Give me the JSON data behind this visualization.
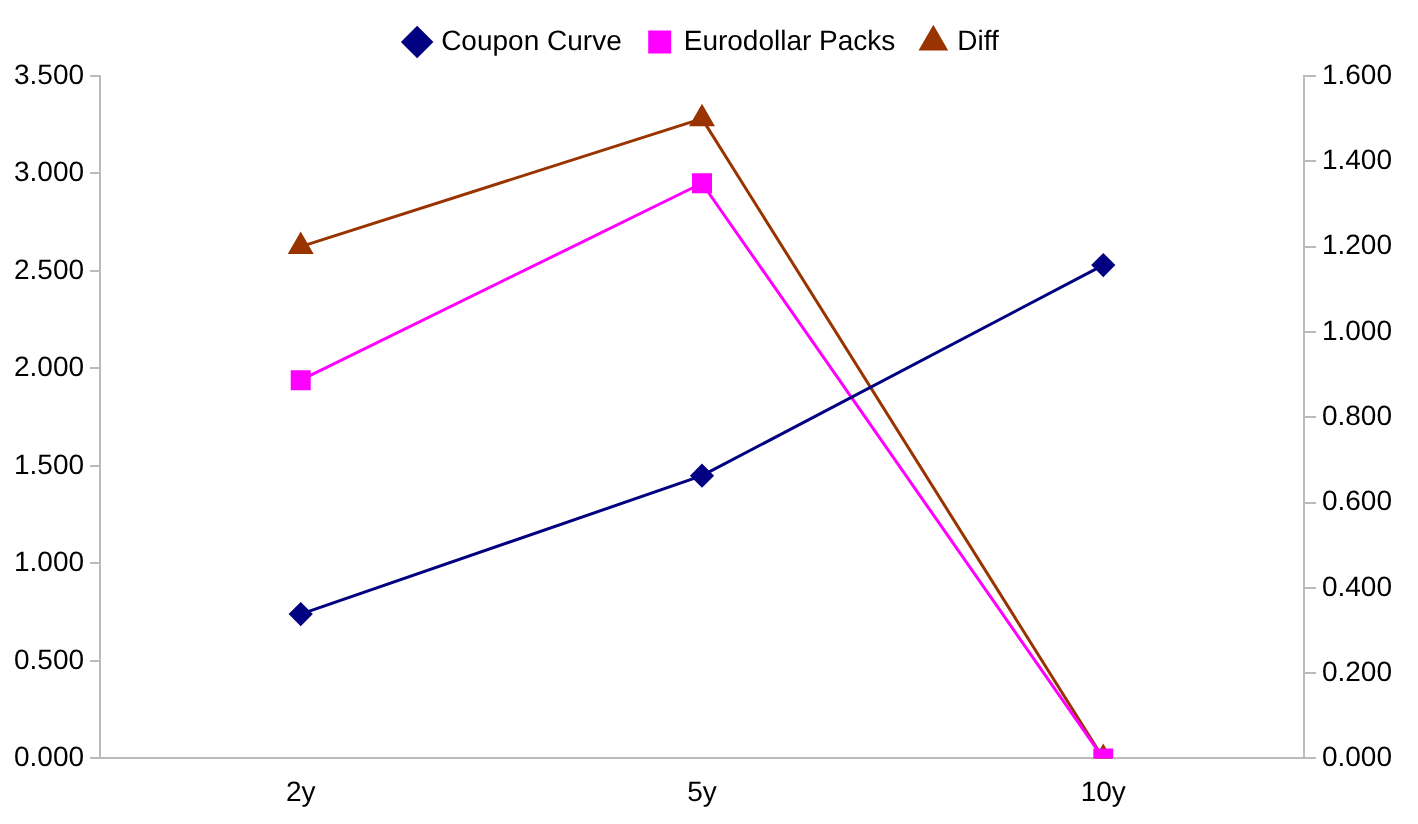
{
  "chart_data": {
    "type": "line",
    "categories": [
      "2y",
      "5y",
      "10y"
    ],
    "series": [
      {
        "name": "Coupon Curve",
        "color": "#000080",
        "values": [
          0.74,
          1.45,
          2.53
        ],
        "marker": "diamond"
      },
      {
        "name": "Eurodollar Packs",
        "color": "#ff00ff",
        "values": [
          1.94,
          2.95,
          0
        ],
        "marker": "square"
      },
      {
        "name": "Diff",
        "color": "#993300",
        "values": [
          1.2,
          1.5,
          0
        ],
        "marker": "triangle",
        "axis": "y2"
      }
    ],
    "ylim": [
      0,
      3.5
    ],
    "yticks": [
      {
        "value": 0,
        "label": "0.000"
      },
      {
        "value": 0.5,
        "label": "0.500"
      },
      {
        "value": 1,
        "label": "1.000"
      },
      {
        "value": 1.5,
        "label": "1.500"
      },
      {
        "value": 2,
        "label": "2.000"
      },
      {
        "value": 2.5,
        "label": "2.500"
      },
      {
        "value": 3,
        "label": "3.000"
      },
      {
        "value": 3.5,
        "label": "3.500"
      }
    ],
    "y2lim": [
      0,
      1.6
    ],
    "y2ticks": [
      {
        "value": 0,
        "label": "0.000"
      },
      {
        "value": 0.2,
        "label": "0.200"
      },
      {
        "value": 0.4,
        "label": "0.400"
      },
      {
        "value": 0.6,
        "label": "0.600"
      },
      {
        "value": 0.8,
        "label": "0.800"
      },
      {
        "value": 1,
        "label": "1.000"
      },
      {
        "value": 1.2,
        "label": "1.200"
      },
      {
        "value": 1.4,
        "label": "1.400"
      },
      {
        "value": 1.6,
        "label": "1.600"
      }
    ],
    "grid": false,
    "legend": "top"
  }
}
